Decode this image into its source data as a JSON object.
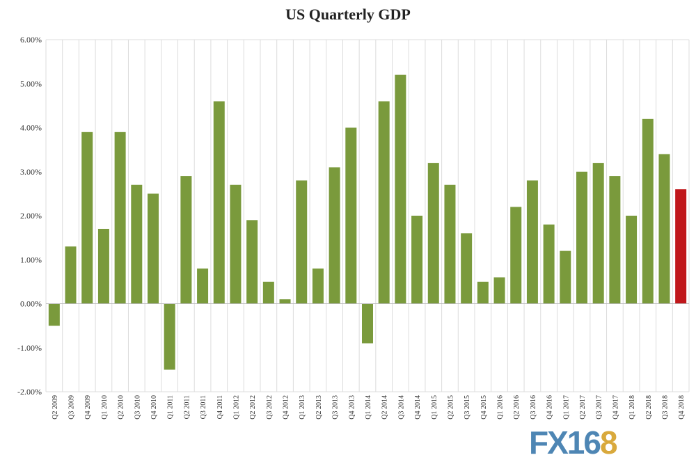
{
  "chart_data": {
    "type": "bar",
    "title": "US Quarterly GDP",
    "xlabel": "",
    "ylabel": "",
    "ylim": [
      -2,
      6
    ],
    "yticks": [
      -2,
      -1,
      0,
      1,
      2,
      3,
      4,
      5,
      6
    ],
    "ytick_labels": [
      "-2.00%",
      "-1.00%",
      "0.00%",
      "1.00%",
      "2.00%",
      "3.00%",
      "4.00%",
      "5.00%",
      "6.00%"
    ],
    "grid": "vertical",
    "categories": [
      "Q2 2009",
      "Q3 2009",
      "Q4 2009",
      "Q1 2010",
      "Q2 2010",
      "Q3 2010",
      "Q4 2010",
      "Q1 2011",
      "Q2 2011",
      "Q3 2011",
      "Q4 2011",
      "Q1 2012",
      "Q2 2012",
      "Q3 2012",
      "Q4 2012",
      "Q1 2013",
      "Q2 2013",
      "Q3 2013",
      "Q4 2013",
      "Q1 2014",
      "Q2 2014",
      "Q3 2014",
      "Q4 2014",
      "Q1 2015",
      "Q2 2015",
      "Q3 2015",
      "Q4 2015",
      "Q1 2016",
      "Q2 2016",
      "Q3 2016",
      "Q4 2016",
      "Q1 2017",
      "Q2 2017",
      "Q3 2017",
      "Q4 2017",
      "Q1 2018",
      "Q2 2018",
      "Q3 2018",
      "Q4 2018"
    ],
    "values": [
      -0.5,
      1.3,
      3.9,
      1.7,
      3.9,
      2.7,
      2.5,
      -1.5,
      2.9,
      0.8,
      4.6,
      2.7,
      1.9,
      0.5,
      0.1,
      2.8,
      0.8,
      3.1,
      4.0,
      -0.9,
      4.6,
      5.2,
      2.0,
      3.2,
      2.7,
      1.6,
      0.5,
      0.6,
      2.2,
      2.8,
      1.8,
      1.2,
      3.0,
      3.2,
      2.9,
      2.0,
      4.2,
      3.4,
      2.6
    ],
    "colors": {
      "default": "#7a9a3c",
      "highlight": "#c0171b"
    },
    "highlight_index": 38
  },
  "watermark": {
    "logo_prefix": "FX16",
    "logo_suffix": "8"
  }
}
